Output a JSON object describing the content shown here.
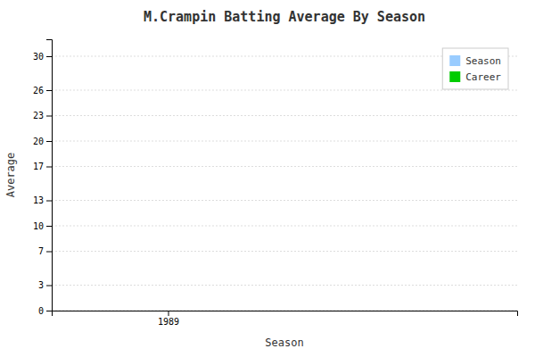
{
  "chart_data": {
    "type": "bar",
    "title": "M.Crampin Batting Average By Season",
    "xlabel": "Season",
    "ylabel": "Average",
    "x": [],
    "series": [
      {
        "name": "Season",
        "color": "#99ccff",
        "values": []
      },
      {
        "name": "Career",
        "color": "#00cc00",
        "values": []
      }
    ],
    "xlim": [
      1988.5,
      1990.5
    ],
    "xticks": [
      1989
    ],
    "ylim": [
      0,
      32
    ],
    "yticks": [
      0,
      3,
      7,
      10,
      13,
      17,
      20,
      23,
      26,
      30
    ],
    "grid": "y",
    "legend": "upper right"
  }
}
